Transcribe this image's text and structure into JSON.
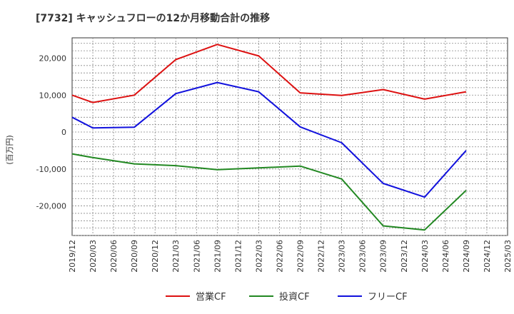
{
  "chart_data": {
    "type": "line",
    "title": "[7732]  キャッシュフローの12か月移動合計の推移",
    "ylabel": "(百万円)",
    "xlabel": "",
    "ylim": [
      -28000,
      25500
    ],
    "yticks": [
      -20000,
      -10000,
      0,
      10000,
      20000
    ],
    "ytick_labels": [
      "-20,000",
      "-10,000",
      "0",
      "10,000",
      "20,000"
    ],
    "categories": [
      "2019/12",
      "2020/03",
      "2020/06",
      "2020/09",
      "2020/12",
      "2021/03",
      "2021/06",
      "2021/09",
      "2021/12",
      "2022/03",
      "2022/06",
      "2022/09",
      "2022/12",
      "2023/03",
      "2023/06",
      "2023/09",
      "2023/12",
      "2024/03",
      "2024/06",
      "2024/09",
      "2024/12",
      "2025/03"
    ],
    "grid": true,
    "legend_position": "bottom",
    "series": [
      {
        "name": "営業CF",
        "color": "#dd1111",
        "x": [
          "2019/12",
          "2020/03",
          "2020/09",
          "2021/03",
          "2021/09",
          "2022/03",
          "2022/09",
          "2023/03",
          "2023/09",
          "2024/03",
          "2024/09"
        ],
        "values": [
          10000,
          8000,
          10000,
          19600,
          23700,
          20600,
          10600,
          9900,
          11500,
          8900,
          10900
        ]
      },
      {
        "name": "投資CF",
        "color": "#228822",
        "x": [
          "2019/12",
          "2020/03",
          "2020/09",
          "2021/03",
          "2021/09",
          "2022/03",
          "2022/09",
          "2023/03",
          "2023/09",
          "2024/03",
          "2024/09"
        ],
        "values": [
          -5900,
          -6900,
          -8600,
          -9100,
          -10200,
          -9700,
          -9200,
          -12700,
          -25400,
          -26500,
          -15800
        ]
      },
      {
        "name": "フリーCF",
        "color": "#1111dd",
        "x": [
          "2019/12",
          "2020/03",
          "2020/09",
          "2021/03",
          "2021/09",
          "2022/03",
          "2022/09",
          "2023/03",
          "2023/09",
          "2024/03",
          "2024/09"
        ],
        "values": [
          4000,
          1100,
          1300,
          10400,
          13400,
          10900,
          1400,
          -2900,
          -13900,
          -17600,
          -5000
        ]
      }
    ]
  }
}
